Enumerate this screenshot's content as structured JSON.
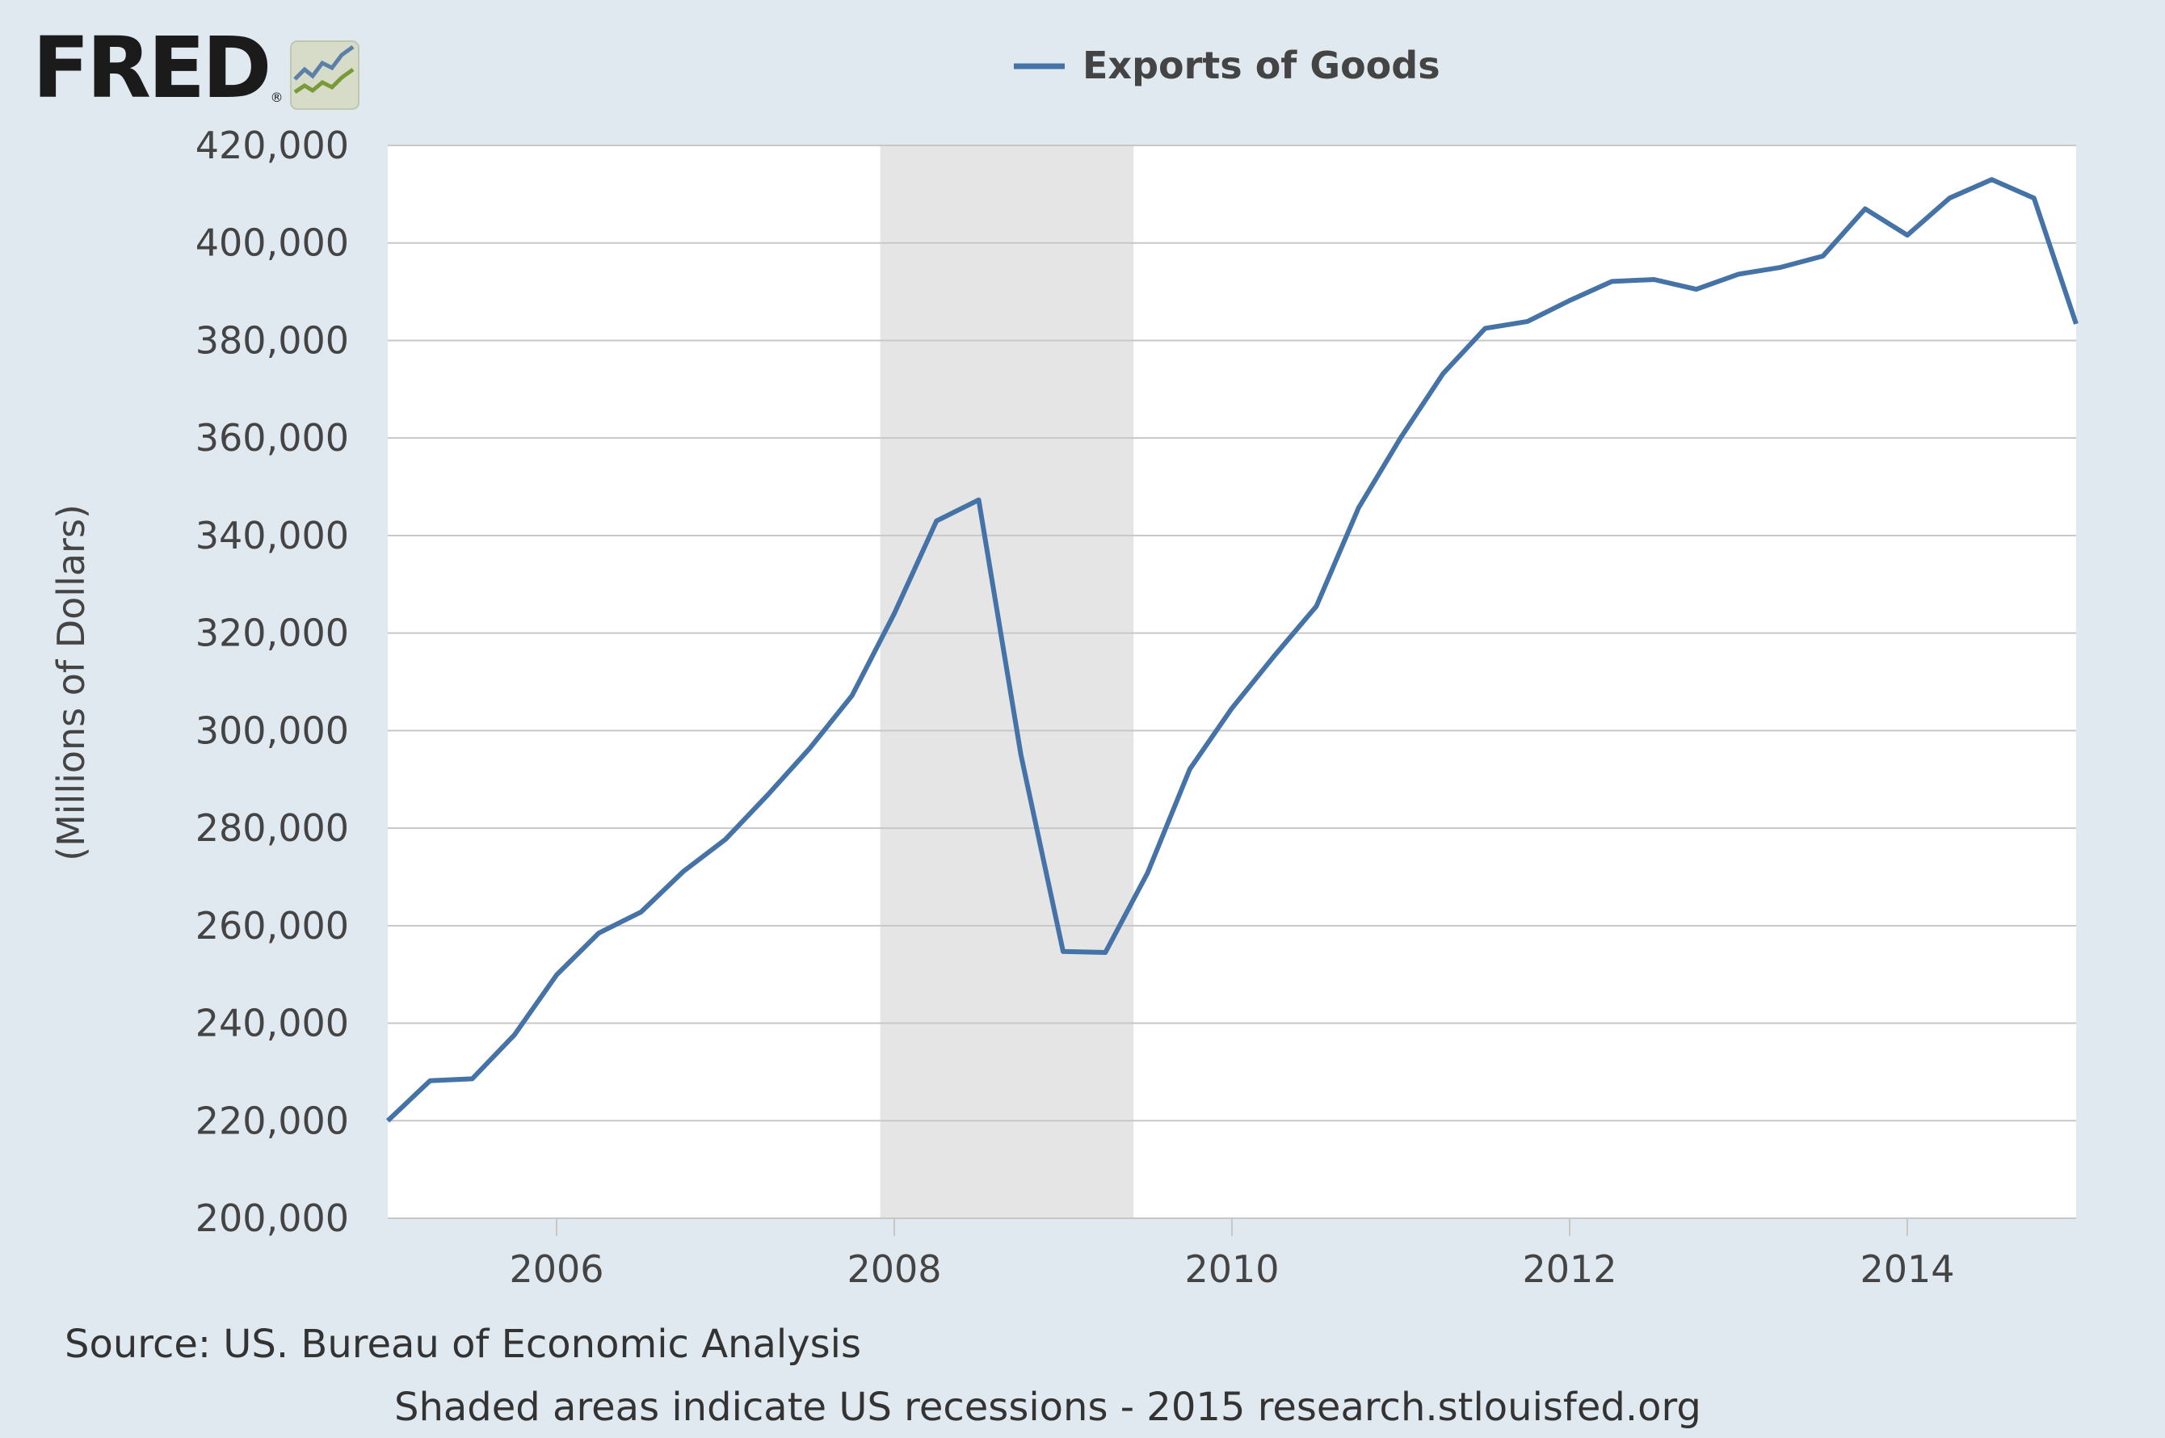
{
  "logo": {
    "text": "FRED",
    "registered": "®",
    "icon": "fred-logo-chart-icon"
  },
  "legend": {
    "label": "Exports of Goods"
  },
  "footer": {
    "source": "Source: US. Bureau of Economic Analysis",
    "note": "Shaded areas indicate US recessions - 2015 research.stlouisfed.org"
  },
  "chart_data": {
    "type": "line",
    "ylabel": "(Millions of Dollars)",
    "xlabel": "",
    "ylim": [
      200000,
      420000
    ],
    "xlim": [
      2005.0,
      2015.0
    ],
    "yticks": [
      200000,
      220000,
      240000,
      260000,
      280000,
      300000,
      320000,
      340000,
      360000,
      380000,
      400000,
      420000
    ],
    "ytick_labels": [
      "200,000",
      "220,000",
      "240,000",
      "260,000",
      "280,000",
      "300,000",
      "320,000",
      "340,000",
      "360,000",
      "380,000",
      "400,000",
      "420,000"
    ],
    "xticks": [
      2006,
      2008,
      2010,
      2012,
      2014
    ],
    "xtick_labels": [
      "2006",
      "2008",
      "2010",
      "2012",
      "2014"
    ],
    "grid": true,
    "legend_position": "top-center",
    "recession": {
      "start": 2007.917,
      "end": 2009.417,
      "color": "#e5e5e5"
    },
    "colors": {
      "series": "#4572a7",
      "grid": "#c7c7c7",
      "background": "#e1e9f0",
      "plot": "#ffffff"
    },
    "series": [
      {
        "name": "Exports of Goods",
        "x": [
          "2005 Q1",
          "2005 Q2",
          "2005 Q3",
          "2005 Q4",
          "2006 Q1",
          "2006 Q2",
          "2006 Q3",
          "2006 Q4",
          "2007 Q1",
          "2007 Q2",
          "2007 Q3",
          "2007 Q4",
          "2008 Q1",
          "2008 Q2",
          "2008 Q3",
          "2008 Q4",
          "2009 Q1",
          "2009 Q2",
          "2009 Q3",
          "2009 Q4",
          "2010 Q1",
          "2010 Q2",
          "2010 Q3",
          "2010 Q4",
          "2011 Q1",
          "2011 Q2",
          "2011 Q3",
          "2011 Q4",
          "2012 Q1",
          "2012 Q2",
          "2012 Q3",
          "2012 Q4",
          "2013 Q1",
          "2013 Q2",
          "2013 Q3",
          "2013 Q4",
          "2014 Q1",
          "2014 Q2",
          "2014 Q3",
          "2014 Q4",
          "2015 Q1"
        ],
        "values": [
          220000,
          228200,
          228600,
          237600,
          249900,
          258500,
          262800,
          271100,
          277700,
          286800,
          296400,
          307200,
          324000,
          343000,
          347300,
          295000,
          254700,
          254500,
          270800,
          292100,
          304600,
          315300,
          325500,
          345700,
          360100,
          373200,
          382500,
          383900,
          388200,
          392100,
          392500,
          390500,
          393600,
          395000,
          397300,
          407000,
          401600,
          409200,
          413000,
          409200,
          383400
        ]
      }
    ]
  }
}
